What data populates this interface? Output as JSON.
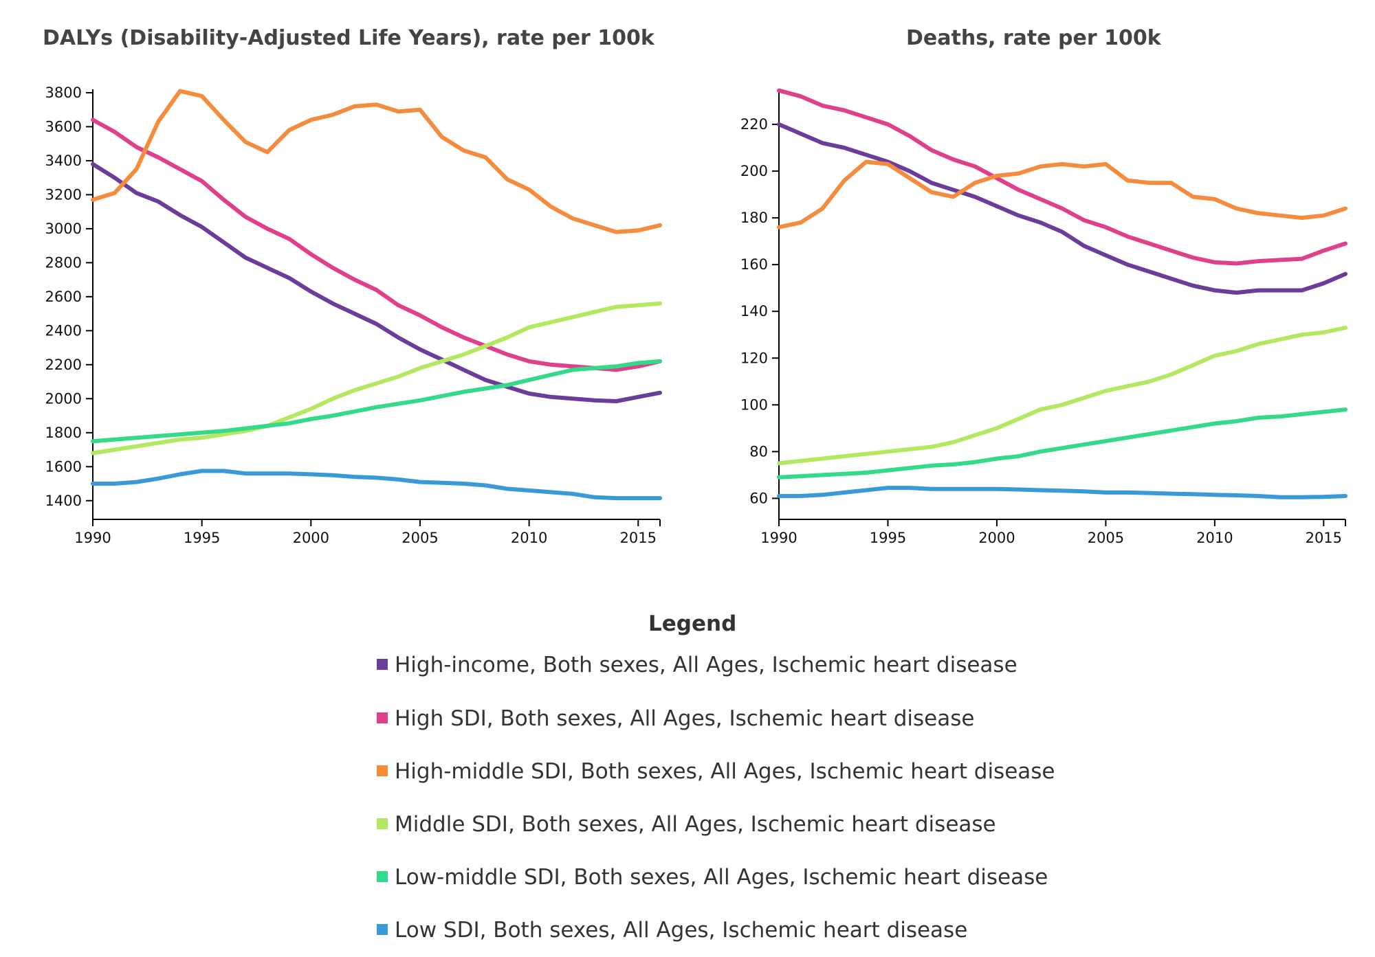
{
  "legend": {
    "title": "Legend",
    "items": [
      {
        "label": "High-income, Both sexes, All Ages, Ischemic heart disease",
        "color": "#6a3d9a"
      },
      {
        "label": "High SDI, Both sexes, All Ages, Ischemic heart disease",
        "color": "#e0408a"
      },
      {
        "label": "High-middle SDI, Both sexes, All Ages, Ischemic heart disease",
        "color": "#f58b3c"
      },
      {
        "label": "Middle SDI, Both sexes, All Ages, Ischemic heart disease",
        "color": "#b5e861"
      },
      {
        "label": "Low-middle SDI, Both sexes, All Ages, Ischemic heart disease",
        "color": "#34d98a"
      },
      {
        "label": "Low SDI, Both sexes, All Ages, Ischemic heart disease",
        "color": "#3a9ad9"
      }
    ]
  },
  "chart_data": [
    {
      "type": "line",
      "title": "DALYs (Disability-Adjusted Life Years), rate per 100k",
      "xlim": [
        1990,
        2016
      ],
      "ylim": [
        1290,
        3820
      ],
      "x_ticks": [
        1990,
        1995,
        2000,
        2005,
        2010,
        2015
      ],
      "y_ticks": [
        1400,
        1600,
        1800,
        2000,
        2200,
        2400,
        2600,
        2800,
        3000,
        3200,
        3400,
        3600,
        3800
      ],
      "grid": false,
      "x": [
        1990,
        1991,
        1992,
        1993,
        1994,
        1995,
        1996,
        1997,
        1998,
        1999,
        2000,
        2001,
        2002,
        2003,
        2004,
        2005,
        2006,
        2007,
        2008,
        2009,
        2010,
        2011,
        2012,
        2013,
        2014,
        2015,
        2016
      ],
      "series": [
        {
          "values": [
            3380,
            3300,
            3210,
            3160,
            3080,
            3010,
            2920,
            2830,
            2770,
            2710,
            2630,
            2560,
            2500,
            2440,
            2360,
            2290,
            2230,
            2170,
            2110,
            2070,
            2030,
            2010,
            2000,
            1990,
            1985,
            2010,
            2035
          ]
        },
        {
          "values": [
            3640,
            3570,
            3480,
            3420,
            3350,
            3280,
            3170,
            3070,
            3000,
            2940,
            2850,
            2770,
            2700,
            2640,
            2550,
            2490,
            2420,
            2360,
            2310,
            2260,
            2220,
            2200,
            2190,
            2180,
            2170,
            2190,
            2220
          ]
        },
        {
          "values": [
            3170,
            3210,
            3350,
            3630,
            3810,
            3780,
            3640,
            3510,
            3450,
            3580,
            3640,
            3670,
            3720,
            3730,
            3690,
            3700,
            3540,
            3460,
            3420,
            3290,
            3230,
            3130,
            3060,
            3020,
            2980,
            2990,
            3020
          ]
        },
        {
          "values": [
            1680,
            1700,
            1720,
            1740,
            1760,
            1770,
            1790,
            1810,
            1840,
            1890,
            1940,
            2000,
            2050,
            2090,
            2130,
            2180,
            2220,
            2260,
            2310,
            2360,
            2420,
            2450,
            2480,
            2510,
            2540,
            2550,
            2560
          ]
        },
        {
          "values": [
            1750,
            1760,
            1770,
            1780,
            1790,
            1800,
            1810,
            1825,
            1840,
            1855,
            1880,
            1900,
            1925,
            1950,
            1970,
            1990,
            2015,
            2040,
            2060,
            2080,
            2110,
            2140,
            2170,
            2180,
            2190,
            2210,
            2220
          ]
        },
        {
          "values": [
            1500,
            1500,
            1510,
            1530,
            1555,
            1575,
            1575,
            1560,
            1560,
            1560,
            1555,
            1550,
            1540,
            1535,
            1525,
            1510,
            1505,
            1500,
            1490,
            1470,
            1460,
            1450,
            1440,
            1420,
            1415,
            1415,
            1415
          ]
        }
      ]
    },
    {
      "type": "line",
      "title": "Deaths, rate per 100k",
      "xlim": [
        1990,
        2016
      ],
      "ylim": [
        51,
        235
      ],
      "x_ticks": [
        1990,
        1995,
        2000,
        2005,
        2010,
        2015
      ],
      "y_ticks": [
        60,
        80,
        100,
        120,
        140,
        160,
        180,
        200,
        220
      ],
      "grid": false,
      "x": [
        1990,
        1991,
        1992,
        1993,
        1994,
        1995,
        1996,
        1997,
        1998,
        1999,
        2000,
        2001,
        2002,
        2003,
        2004,
        2005,
        2006,
        2007,
        2008,
        2009,
        2010,
        2011,
        2012,
        2013,
        2014,
        2015,
        2016
      ],
      "series": [
        {
          "values": [
            220,
            216,
            212,
            210,
            207,
            204,
            200,
            195,
            192,
            189,
            185,
            181,
            178,
            174,
            168,
            164,
            160,
            157,
            154,
            151,
            149,
            148,
            149,
            149,
            149,
            152,
            156
          ]
        },
        {
          "values": [
            234.5,
            232,
            228,
            226,
            223,
            220,
            215,
            209,
            205,
            202,
            197,
            192,
            188,
            184,
            179,
            176,
            172,
            169,
            166,
            163,
            161,
            160.5,
            161.5,
            162,
            162.5,
            166,
            169
          ]
        },
        {
          "values": [
            176,
            178,
            184,
            196,
            204,
            203,
            197,
            191,
            189,
            195,
            198,
            199,
            202,
            203,
            202,
            203,
            196,
            195,
            195,
            189,
            188,
            184,
            182,
            181,
            180,
            181,
            184
          ]
        },
        {
          "values": [
            75,
            76,
            77,
            78,
            79,
            80,
            81,
            82,
            84,
            87,
            90,
            94,
            98,
            100,
            103,
            106,
            108,
            110,
            113,
            117,
            121,
            123,
            126,
            128,
            130,
            131,
            133
          ]
        },
        {
          "values": [
            69,
            69.5,
            70,
            70.5,
            71,
            72,
            73,
            74,
            74.5,
            75.5,
            77,
            78,
            80,
            81.5,
            83,
            84.5,
            86,
            87.5,
            89,
            90.5,
            92,
            93,
            94.5,
            95,
            96,
            97,
            98
          ]
        },
        {
          "values": [
            61,
            61,
            61.5,
            62.5,
            63.5,
            64.5,
            64.5,
            64,
            64,
            64,
            64,
            63.8,
            63.5,
            63.3,
            63,
            62.5,
            62.5,
            62.3,
            62,
            61.8,
            61.5,
            61.3,
            61,
            60.5,
            60.5,
            60.6,
            61
          ]
        }
      ]
    }
  ]
}
